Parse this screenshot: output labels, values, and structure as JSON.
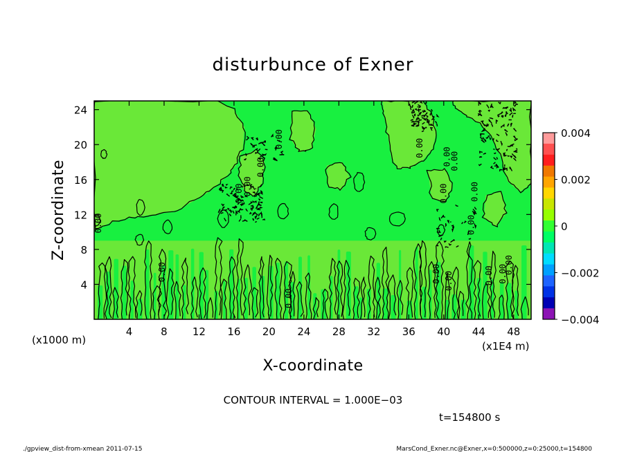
{
  "chart_data": {
    "type": "heatmap",
    "title": "disturbunce of Exner",
    "xlabel": "X-coordinate",
    "ylabel": "Z-coordinate",
    "x_unit_left": "(x1000 m)",
    "x_unit_right": "(x1E4 m)",
    "xlim": [
      0,
      50
    ],
    "ylim": [
      0,
      25
    ],
    "x_ticks": [
      4,
      8,
      12,
      16,
      20,
      24,
      28,
      32,
      36,
      40,
      44,
      48
    ],
    "y_ticks": [
      4,
      8,
      12,
      16,
      20,
      24
    ],
    "contour_label": "0.00",
    "contour_label_positions": [
      {
        "x": 21.2,
        "y": 20.6
      },
      {
        "x": 19.1,
        "y": 17.4
      },
      {
        "x": 17.6,
        "y": 15.2
      },
      {
        "x": 16.6,
        "y": 14.4
      },
      {
        "x": 37.3,
        "y": 19.6
      },
      {
        "x": 40.4,
        "y": 18.6
      },
      {
        "x": 41.3,
        "y": 18.1
      },
      {
        "x": 40.0,
        "y": 14.4
      },
      {
        "x": 43.6,
        "y": 14.6
      },
      {
        "x": 43.2,
        "y": 10.8
      },
      {
        "x": 39.2,
        "y": 5.2
      },
      {
        "x": 40.6,
        "y": 4.4
      },
      {
        "x": 45.2,
        "y": 5.0
      },
      {
        "x": 46.8,
        "y": 5.2
      },
      {
        "x": 47.5,
        "y": 6.2
      },
      {
        "x": 7.8,
        "y": 5.4
      },
      {
        "x": 22.3,
        "y": 2.4
      },
      {
        "x": 0.5,
        "y": 11.0
      }
    ],
    "colorbar": {
      "min": -0.004,
      "max": 0.004,
      "ticks": [
        "0.004",
        "0.002",
        "0",
        "−0.002",
        "−0.004"
      ],
      "tick_values": [
        0.004,
        0.002,
        0,
        -0.002,
        -0.004
      ],
      "colors_top_to_bottom": [
        "#ff9b9b",
        "#ff5050",
        "#ff1e1e",
        "#f07800",
        "#ffa500",
        "#ffd700",
        "#c8e600",
        "#96ff00",
        "#32ff32",
        "#00ff64",
        "#00e6b4",
        "#00dcff",
        "#00a0ff",
        "#1e64ff",
        "#0032e6",
        "#0000b4",
        "#8c14b4"
      ]
    },
    "field_colors": {
      "base": "#18f040",
      "positive_region": "#6ae838"
    },
    "grid": false,
    "legend": "colorbar-right"
  },
  "contour_interval": "CONTOUR INTERVAL = 1.000E−03",
  "time_label": "t=154800 s",
  "footer_left": "./gpview_dist-from-xmean  2011-07-15",
  "footer_right": "MarsCond_Exner.nc@Exner,x=0:500000,z=0:25000,t=154800"
}
